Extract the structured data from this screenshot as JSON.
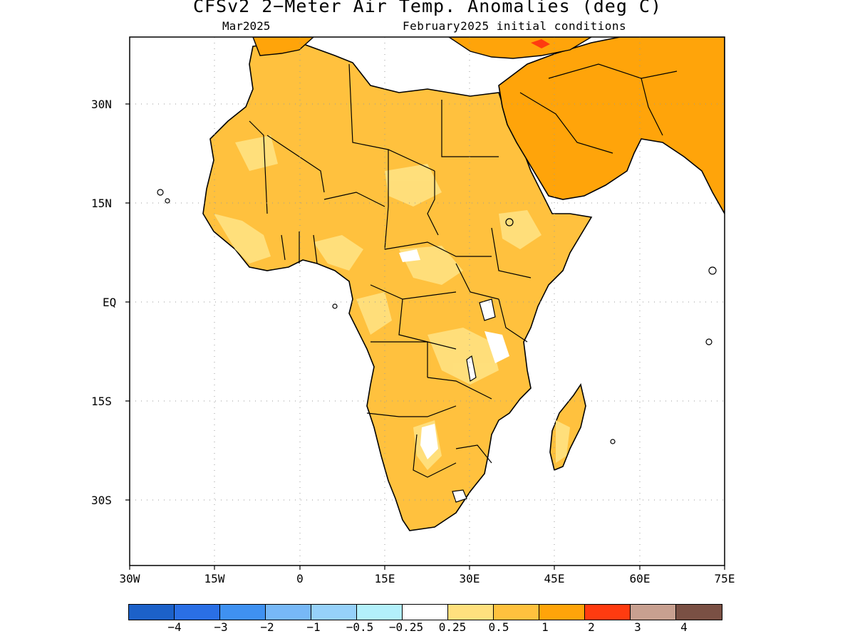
{
  "header": {
    "title": "CFSv2 2−Meter Air Temp. Anomalies (deg C)",
    "valid_month": "Mar2025",
    "initial_conditions": "February2025 initial conditions"
  },
  "map": {
    "region": "Africa and Arabian Peninsula",
    "lon_range": [
      -30,
      75
    ],
    "lat_range": [
      -42,
      40
    ],
    "lat_ticks": [
      "30N",
      "15N",
      "EQ",
      "15S",
      "30S"
    ],
    "lon_ticks": [
      "30W",
      "15W",
      "0",
      "15E",
      "30E",
      "45E",
      "60E",
      "75E"
    ],
    "gridlines": "dotted",
    "dominant_anomaly": "0.5 to 2 deg C warm over nearly all land"
  },
  "colorbar": {
    "colors": [
      "#1c61c9",
      "#2a6fe5",
      "#3f91f1",
      "#77b8f7",
      "#96d1fa",
      "#b3f0fb",
      "#ffffff",
      "#ffe07e",
      "#ffc13e",
      "#ffa40a",
      "#ff3b10",
      "#c8a090",
      "#7a5044"
    ],
    "labels": [
      "−4",
      "−3",
      "−2",
      "−1",
      "−0.5",
      "−0.25",
      "0.25",
      "0.5",
      "1",
      "2",
      "3",
      "4"
    ]
  }
}
